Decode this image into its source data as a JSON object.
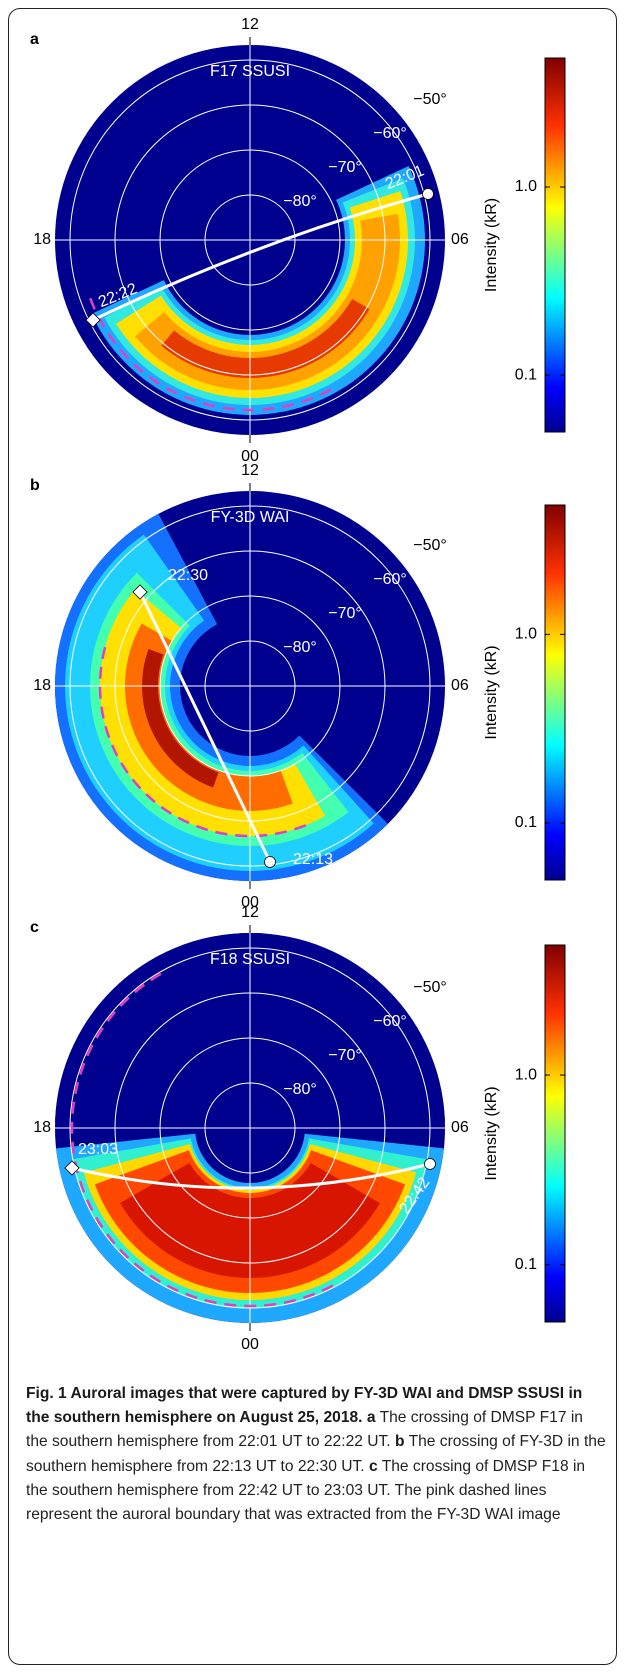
{
  "figure": {
    "panels": [
      {
        "label": "a",
        "instrument": "F17 SSUSI",
        "local_times": {
          "top": "12",
          "left": "18",
          "right": "06",
          "bottom": "00"
        },
        "latitudes": [
          "−50°",
          "−60°",
          "−70°",
          "−80°"
        ],
        "track": {
          "start": "22:01",
          "end": "22:22"
        },
        "colorbar": {
          "title": "Intensity (kR)",
          "ticks": [
            "1.0",
            "0.1"
          ]
        }
      },
      {
        "label": "b",
        "instrument": "FY-3D WAI",
        "local_times": {
          "top": "12",
          "left": "18",
          "right": "06",
          "bottom": "00"
        },
        "latitudes": [
          "−50°",
          "−60°",
          "−70°",
          "−80°"
        ],
        "track": {
          "start": "22:13",
          "end": "22:30"
        },
        "colorbar": {
          "title": "Intensity (kR)",
          "ticks": [
            "1.0",
            "0.1"
          ]
        }
      },
      {
        "label": "c",
        "instrument": "F18 SSUSI",
        "local_times": {
          "top": "12",
          "left": "18",
          "right": "06",
          "bottom": "00"
        },
        "latitudes": [
          "−50°",
          "−60°",
          "−70°",
          "−80°"
        ],
        "track": {
          "start": "22:42",
          "end": "23:03"
        },
        "colorbar": {
          "title": "Intensity (kR)",
          "ticks": [
            "1.0",
            "0.1"
          ]
        }
      }
    ],
    "caption": {
      "title": "Fig. 1 Auroral images that were captured by FY-3D WAI and DMSP SSUSI in the southern hemisphere on August 25, 2018.",
      "parts": [
        {
          "label": "a",
          "text": "The crossing of DMSP F17 in the southern hemisphere from 22:01 UT to 22:22 UT."
        },
        {
          "label": "b",
          "text": "The crossing of FY-3D in the southern hemisphere from 22:13 UT to 22:30 UT."
        },
        {
          "label": "c",
          "text": "The crossing of DMSP F18 in the southern hemisphere from 22:42 UT to 23:03 UT. The pink dashed lines represent the auroral boundary that was extracted from the FY-3D WAI image"
        }
      ]
    }
  }
}
